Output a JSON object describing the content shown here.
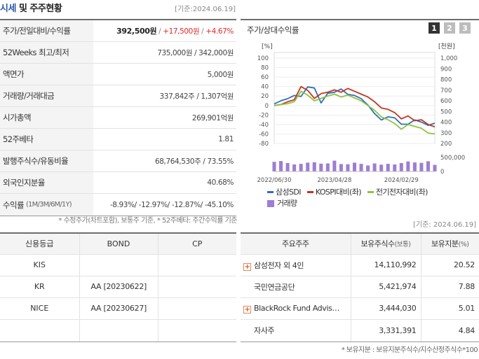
{
  "header": {
    "title_highlight": "시세",
    "title_rest": " 및 주주현황",
    "base_date": "[기준:2024.06.19]"
  },
  "stats": [
    {
      "label": "주가/전일대비/수익률",
      "price": "392,500원",
      "sep1": " / ",
      "change": "+17,500원",
      "sep2": " / ",
      "rate": "+4.67%"
    },
    {
      "label": "52Weeks 최고/최저",
      "value": "735,000원 / 342,000원"
    },
    {
      "label": "액면가",
      "value": "5,000원"
    },
    {
      "label": "거래량/거래대금",
      "value": "337,842주 / 1,307억원"
    },
    {
      "label": "시가총액",
      "value": "269,901억원"
    },
    {
      "label": "52주베타",
      "value": "1.81"
    },
    {
      "label": "발행주식수/유동비율",
      "value": "68,764,530주 / 73.55%"
    },
    {
      "label": "외국인지분율",
      "value": "40.68%"
    }
  ],
  "returns": {
    "label": "수익률",
    "sub": "(1M/3M/6M/1Y)",
    "r1": "-8.93%",
    "r2": "-12.97%",
    "r3": "-12.87%",
    "r4": "-45.10%"
  },
  "footnote": "* 수정주가(차트포함), 보통주 기준, * 52주베타: 주간수익률 기준",
  "chart_panel": {
    "title": "주가/상대수익률",
    "pages": [
      "1",
      "2",
      "3"
    ],
    "active_page": "1"
  },
  "chart_data": {
    "type": "line",
    "title": "주가/상대수익률",
    "ylabel_left": "[%]",
    "ylabel_right": "[천원]",
    "volume_label": "500,000",
    "volume_zero": "0",
    "left_axis": {
      "ylim": [
        -80,
        100
      ],
      "ticks": [
        "100",
        "80",
        "60",
        "40",
        "20",
        "0",
        "-20",
        "-40",
        "-60",
        "-80"
      ],
      "tick_values": [
        100,
        80,
        60,
        40,
        20,
        0,
        -20,
        -40,
        -60,
        -80
      ]
    },
    "right_axis": {
      "ylim": [
        200,
        1000
      ],
      "ticks": [
        "1,000",
        "900",
        "800",
        "700",
        "600",
        "500",
        "400",
        "300",
        "200"
      ],
      "tick_values": [
        1000,
        900,
        800,
        700,
        600,
        500,
        400,
        300,
        200
      ]
    },
    "x_ticks": [
      "2022/06/30",
      "2023/04/28",
      "2024/02/29"
    ],
    "x_tick_pos": [
      0,
      9,
      19
    ],
    "n_points": 25,
    "series": [
      {
        "name": "삼성SDI",
        "color": "#2d6fc0",
        "axis": "right",
        "values": [
          570,
          600,
          620,
          650,
          640,
          730,
          720,
          580,
          670,
          680,
          710,
          660,
          650,
          620,
          560,
          480,
          420,
          450,
          440,
          380,
          380,
          420,
          400,
          370,
          390
        ]
      },
      {
        "name": "KOSPI대비(좌)",
        "color": "#c8341e",
        "axis": "left",
        "values": [
          0,
          2,
          8,
          12,
          40,
          32,
          15,
          25,
          28,
          33,
          28,
          36,
          30,
          24,
          18,
          8,
          -5,
          -8,
          -15,
          -28,
          -22,
          -32,
          -30,
          -40,
          -45
        ]
      },
      {
        "name": "전기전자대비(좌)",
        "color": "#8cc43c",
        "axis": "left",
        "values": [
          0,
          2,
          4,
          8,
          30,
          22,
          10,
          15,
          20,
          24,
          18,
          22,
          16,
          10,
          0,
          -10,
          -24,
          -30,
          -38,
          -50,
          -40,
          -44,
          -48,
          -58,
          -60
        ]
      }
    ],
    "volume": {
      "name": "거래량",
      "color": "#9d7ed2",
      "max": 700000,
      "values": [
        480000,
        520000,
        420000,
        350000,
        380000,
        440000,
        460000,
        390000,
        400000,
        540000,
        370000,
        360000,
        440000,
        380000,
        300000,
        400000,
        340000,
        380000,
        350000,
        420000,
        500000,
        450000,
        430000,
        510000,
        330000
      ]
    }
  },
  "legend": {
    "s1": "삼성SDI",
    "s2": "KOSPI대비(좌)",
    "s3": "전기전자대비(좌)",
    "vol": "거래량"
  },
  "credit": {
    "base_date": "[기준: 2024.06.19]",
    "headers": [
      "신용등급",
      "BOND",
      "CP"
    ],
    "rows": [
      {
        "agency": "KIS",
        "bond": "",
        "cp": ""
      },
      {
        "agency": "KR",
        "bond": "AA   [20230622]",
        "cp": ""
      },
      {
        "agency": "NICE",
        "bond": "AA   [20230627]",
        "cp": ""
      },
      {
        "agency": "",
        "bond": "",
        "cp": ""
      }
    ]
  },
  "holders": {
    "headers": {
      "name": "주요주주",
      "shares": "보유주식수",
      "shares_sub": "(보통)",
      "ratio": "보유지분",
      "ratio_sub": "(%)"
    },
    "rows": [
      {
        "name": "삼성전자 외 4인",
        "shares": "14,110,992",
        "ratio": "20.52",
        "expand": "+"
      },
      {
        "name": "국민연금공단",
        "shares": "5,421,974",
        "ratio": "7.88",
        "expand": ""
      },
      {
        "name": "BlackRock Fund Advis…",
        "shares": "3,444,030",
        "ratio": "5.01",
        "expand": "+"
      },
      {
        "name": "자사주",
        "shares": "3,331,391",
        "ratio": "4.84",
        "expand": ""
      }
    ],
    "note": "* 보유지분 : 보유지분주식수/지수산정주식수*100"
  }
}
